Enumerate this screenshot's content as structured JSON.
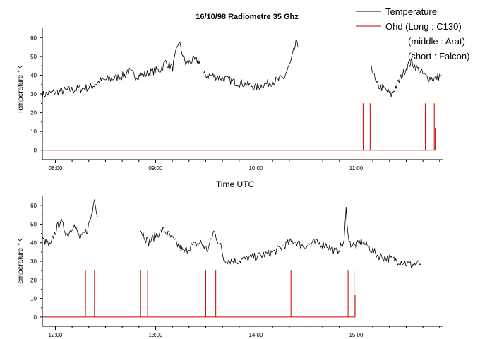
{
  "chart_data": [
    {
      "type": "line",
      "title": "16/10/98 Radiometre 35 Ghz",
      "xlabel": "Time UTC",
      "ylabel": "Temperature °K",
      "x_unit": "UTC time (hours)",
      "xlim": [
        7.87,
        11.87
      ],
      "ylim": [
        -5,
        65
      ],
      "x_ticks": [
        8,
        9,
        10,
        11
      ],
      "x_tick_labels": [
        "08:00",
        "09:00",
        "10:00",
        "11:00"
      ],
      "y_ticks": [
        0,
        10,
        20,
        30,
        40,
        50,
        60
      ],
      "y_tick_labels": [
        "0",
        "10",
        "20",
        "30",
        "40",
        "50",
        "60"
      ],
      "grid": false,
      "legend_position": "top-right",
      "series": [
        {
          "name": "Temperature",
          "color": "#000000",
          "segments": [
            [
              [
                7.87,
                29.5
              ],
              [
                8.0,
                31
              ],
              [
                8.2,
                32.5
              ],
              [
                8.35,
                33.5
              ],
              [
                8.45,
                37
              ],
              [
                8.55,
                38
              ],
              [
                8.7,
                40
              ],
              [
                8.72,
                42.5
              ],
              [
                8.8,
                39.5
              ],
              [
                8.9,
                40.5
              ],
              [
                8.97,
                42
              ],
              [
                9.05,
                43
              ],
              [
                9.1,
                47
              ],
              [
                9.17,
                44
              ],
              [
                9.23,
                58
              ],
              [
                9.3,
                46
              ],
              [
                9.38,
                48
              ],
              [
                9.45,
                47.5
              ]
            ],
            [
              [
                9.47,
                40
              ],
              [
                9.6,
                39.5
              ],
              [
                9.72,
                37.5
              ],
              [
                9.82,
                36
              ],
              [
                9.93,
                35
              ],
              [
                10.0,
                33.5
              ],
              [
                10.08,
                35
              ],
              [
                10.2,
                37
              ],
              [
                10.28,
                38.5
              ],
              [
                10.35,
                47
              ],
              [
                10.4,
                57
              ],
              [
                10.42,
                55
              ]
            ],
            [
              [
                11.15,
                46
              ],
              [
                11.2,
                35
              ],
              [
                11.3,
                32
              ],
              [
                11.35,
                29.5
              ],
              [
                11.42,
                36
              ],
              [
                11.5,
                44
              ],
              [
                11.55,
                47
              ],
              [
                11.62,
                43
              ],
              [
                11.7,
                39
              ],
              [
                11.78,
                38
              ],
              [
                11.85,
                40
              ]
            ]
          ]
        },
        {
          "name": "Ohd (Long : C130)",
          "color": "#cc0000",
          "baseline": 0,
          "spikes": [
            [
              11.07,
              25
            ],
            [
              11.14,
              25
            ],
            [
              11.69,
              25
            ],
            [
              11.78,
              25
            ],
            [
              11.79,
              12
            ]
          ]
        }
      ]
    },
    {
      "type": "line",
      "title": "",
      "xlabel": "",
      "ylabel": "Temperature °K",
      "x_unit": "UTC time (hours)",
      "xlim": [
        11.87,
        15.87
      ],
      "ylim": [
        -5,
        65
      ],
      "x_ticks": [
        12,
        13,
        14,
        15
      ],
      "x_tick_labels": [
        "12:00",
        "13:00",
        "14:00",
        "15:00"
      ],
      "y_ticks": [
        0,
        10,
        20,
        30,
        40,
        50,
        60
      ],
      "y_tick_labels": [
        "0",
        "10",
        "20",
        "30",
        "40",
        "50",
        "60"
      ],
      "grid": false,
      "series": [
        {
          "name": "Temperature",
          "color": "#000000",
          "segments": [
            [
              [
                11.87,
                42
              ],
              [
                11.95,
                38
              ],
              [
                12.0,
                46
              ],
              [
                12.05,
                52
              ],
              [
                12.12,
                44
              ],
              [
                12.18,
                50
              ],
              [
                12.25,
                42
              ],
              [
                12.32,
                47
              ],
              [
                12.37,
                57
              ],
              [
                12.39,
                65
              ],
              [
                12.42,
                54
              ]
            ],
            [
              [
                12.85,
                47
              ],
              [
                12.93,
                40
              ],
              [
                13.0,
                44
              ],
              [
                13.08,
                47
              ],
              [
                13.15,
                43
              ],
              [
                13.2,
                40
              ],
              [
                13.28,
                35
              ],
              [
                13.35,
                38
              ],
              [
                13.45,
                40
              ],
              [
                13.52,
                36
              ],
              [
                13.58,
                46
              ],
              [
                13.65,
                38
              ],
              [
                13.68,
                31
              ],
              [
                13.8,
                30
              ],
              [
                13.95,
                32
              ],
              [
                14.05,
                33
              ],
              [
                14.18,
                35
              ],
              [
                14.3,
                39
              ],
              [
                14.38,
                41
              ],
              [
                14.48,
                38
              ],
              [
                14.58,
                40
              ],
              [
                14.7,
                39
              ],
              [
                14.8,
                35
              ],
              [
                14.88,
                40
              ],
              [
                14.9,
                58
              ],
              [
                14.93,
                40
              ],
              [
                15.0,
                38
              ],
              [
                15.05,
                41
              ],
              [
                15.12,
                38
              ],
              [
                15.22,
                33
              ],
              [
                15.35,
                31
              ],
              [
                15.45,
                30
              ],
              [
                15.55,
                28
              ],
              [
                15.65,
                29
              ]
            ]
          ]
        },
        {
          "name": "Ohd (Long : C130)",
          "color": "#cc0000",
          "baseline": 0,
          "spikes": [
            [
              12.3,
              25
            ],
            [
              12.39,
              25
            ],
            [
              12.85,
              25
            ],
            [
              12.92,
              25
            ],
            [
              13.5,
              25
            ],
            [
              13.6,
              25
            ],
            [
              14.35,
              25
            ],
            [
              14.43,
              25
            ],
            [
              14.92,
              25
            ],
            [
              14.98,
              25
            ],
            [
              14.99,
              12
            ]
          ]
        }
      ]
    }
  ],
  "legend": {
    "entries": [
      {
        "label": "Temperature",
        "color": "#000000"
      },
      {
        "label": "Ohd (Long : C130)",
        "color": "#cc0000"
      }
    ],
    "notes": [
      "(middle : Arat)",
      "(short : Falcon)"
    ]
  }
}
